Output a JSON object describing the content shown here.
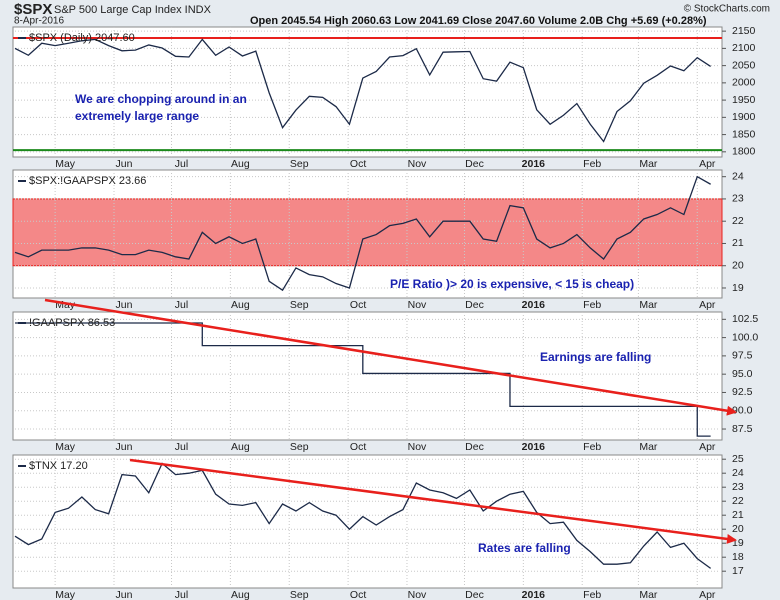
{
  "header": {
    "symbol": "$SPX",
    "name": "S&P 500 Large Cap Index INDX",
    "date": "8-Apr-2016",
    "quote": "Open 2045.54  High 2060.63  Low 2041.69  Close 2047.60  Volume 2.0B  Chg +5.69 (+0.28%)",
    "watermark": "© StockCharts.com"
  },
  "chart_data": [
    {
      "type": "line",
      "grid": true,
      "ylim": [
        1785,
        2162
      ],
      "yticks": [
        1800,
        1850,
        1900,
        1950,
        2000,
        2050,
        2100,
        2150
      ],
      "xlim": [
        0,
        52.7
      ],
      "xticks": [
        {
          "value": 3,
          "label": "May"
        },
        {
          "value": 7.4,
          "label": "Jun"
        },
        {
          "value": 11.7,
          "label": "Jul"
        },
        {
          "value": 16.1,
          "label": "Aug"
        },
        {
          "value": 20.5,
          "label": "Sep"
        },
        {
          "value": 24.9,
          "label": "Oct"
        },
        {
          "value": 29.3,
          "label": "Nov"
        },
        {
          "value": 33.6,
          "label": "Dec"
        },
        {
          "value": 38,
          "label": "2016"
        },
        {
          "value": 42.4,
          "label": "Feb"
        },
        {
          "value": 46.6,
          "label": "Mar"
        },
        {
          "value": 51,
          "label": "Apr"
        }
      ],
      "hlines": [
        {
          "value": 2130,
          "color": "#e8201c"
        },
        {
          "value": 1805,
          "color": "#1b8a1b"
        }
      ],
      "annotation": [
        "We are chopping around in an",
        "extremely large range"
      ],
      "series": [
        {
          "name": "$SPX (Daily) 2047.60",
          "color": "#1c2a48",
          "values": [
            2100,
            2080,
            2115,
            2108,
            2115,
            2122,
            2126,
            2108,
            2093,
            2095,
            2110,
            2101,
            2077,
            2075,
            2126,
            2080,
            2104,
            2078,
            2092,
            1971,
            1870,
            1921,
            1961,
            1958,
            1931,
            1880,
            2014,
            2033,
            2075,
            2079,
            2099,
            2023,
            2089,
            2090,
            2091,
            2012,
            2005,
            2060,
            2044,
            1922,
            1880,
            1906,
            1940,
            1880,
            1830,
            1917,
            1948,
            1999,
            2022,
            2049,
            2035,
            2073,
            2047.6
          ]
        }
      ]
    },
    {
      "type": "line",
      "grid": true,
      "ylim": [
        18.55,
        24.3
      ],
      "yticks": [
        19,
        20,
        21,
        22,
        23,
        24
      ],
      "band": {
        "range": [
          20,
          23
        ],
        "color": "#f48888"
      },
      "annotation": [
        "P/E Ratio )> 20 is expensive, < 15 is cheap)"
      ],
      "series": [
        {
          "name": "$SPX:!GAAPSPX 23.66",
          "color": "#1c2a48",
          "values": [
            20.6,
            20.4,
            20.7,
            20.7,
            20.7,
            20.8,
            20.8,
            20.7,
            20.5,
            20.5,
            20.7,
            20.6,
            20.4,
            20.3,
            21.5,
            21.0,
            21.3,
            21.0,
            21.2,
            19.3,
            18.9,
            19.9,
            19.6,
            19.5,
            19.2,
            19.0,
            21.2,
            21.4,
            21.8,
            21.9,
            22.1,
            21.3,
            22.0,
            22.0,
            22.0,
            21.2,
            21.1,
            22.7,
            22.6,
            21.2,
            20.8,
            21.0,
            21.4,
            20.8,
            20.3,
            21.2,
            21.5,
            22.1,
            22.3,
            22.6,
            22.3,
            24.0,
            23.66
          ]
        }
      ]
    },
    {
      "type": "line",
      "grid": true,
      "ylim": [
        86,
        103.5
      ],
      "yticks": [
        87.5,
        {
          "value": 90,
          "label": "90.0"
        },
        92.5,
        {
          "value": 95,
          "label": "95.0"
        },
        97.5,
        {
          "value": 100,
          "label": "100.0"
        },
        102.5
      ],
      "step": true,
      "annotation": [
        "Earnings are falling"
      ],
      "series": [
        {
          "name": "!GAAPSPX 86.53",
          "color": "#1c2a48",
          "values": [
            102,
            102,
            102,
            102,
            102,
            102,
            102,
            102,
            102,
            102,
            102,
            102,
            102,
            102,
            98.9,
            98.9,
            98.9,
            98.9,
            98.9,
            98.9,
            98.9,
            98.9,
            98.9,
            98.9,
            98.9,
            98.9,
            95.1,
            95.1,
            95.1,
            95.1,
            95.1,
            95.1,
            95.1,
            95.1,
            95.1,
            95.1,
            95.1,
            90.6,
            90.6,
            90.6,
            90.6,
            90.6,
            90.6,
            90.6,
            90.6,
            90.6,
            90.6,
            90.6,
            90.6,
            90.6,
            90.6,
            86.53,
            86.53
          ]
        }
      ]
    },
    {
      "type": "line",
      "grid": true,
      "ylim": [
        15.8,
        25.3
      ],
      "yticks": [
        17,
        18,
        19,
        20,
        21,
        22,
        23,
        24,
        25
      ],
      "annotation": [
        "Rates are falling"
      ],
      "series": [
        {
          "name": "$TNX 17.20",
          "color": "#1c2a48",
          "values": [
            19.5,
            18.9,
            19.3,
            21.2,
            21.5,
            22.3,
            21.4,
            21.1,
            23.9,
            23.8,
            22.6,
            24.7,
            23.9,
            24.0,
            24.2,
            22.5,
            21.8,
            21.7,
            21.9,
            20.4,
            21.8,
            21.3,
            21.9,
            21.3,
            21.0,
            20.0,
            20.9,
            20.3,
            20.9,
            21.4,
            23.3,
            22.8,
            22.6,
            22.2,
            22.8,
            21.3,
            22.0,
            22.5,
            22.7,
            21.2,
            20.4,
            20.5,
            19.2,
            18.4,
            17.5,
            17.5,
            17.6,
            18.8,
            19.8,
            18.7,
            19.0,
            17.9,
            17.2
          ]
        }
      ]
    }
  ]
}
